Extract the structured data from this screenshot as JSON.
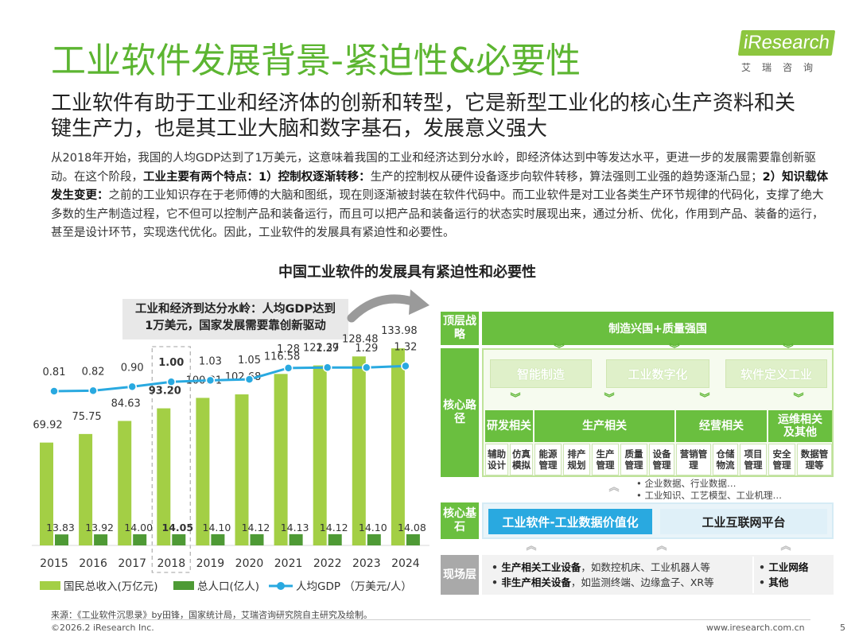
{
  "header": {
    "title": "工业软件发展背景-紧迫性&必要性",
    "logo_text": "iResearch",
    "logo_cn": "艾瑞咨询"
  },
  "subheadline": "工业软件有助于工业和经济体的创新和转型，它是新型工业化的核心生产资料和关键生产力，也是其工业大脑和数字基石，发展意义强大",
  "body": {
    "p1": "从2018年开始，我国的人均GDP达到了1万美元，这意味着我国的工业和经济达到分水岭，即经济体达到中等发达水平，更进一步的发展需要靠创新驱动。在这个阶段，",
    "b1": "工业主要有两个特点：1）控制权逐渐转移：",
    "p2": "生产的控制权从硬件设备逐步向软件转移，算法强则工业强的趋势逐渐凸显；",
    "b2": "2）知识载体发生变更：",
    "p3": "之前的工业知识存在于老师傅的大脑和图纸，现在则逐渐被封装在软件代码中。而工业软件是对工业各类生产环节规律的代码化，支撑了绝大多数的生产制造过程，它不但可以控制产品和装备运行，而且可以把产品和装备运行的状态实时展现出来，通过分析、优化，作用到产品、装备的运行，甚至是设计环节，实现迭代优化。因此，工业软件的发展具有紧迫性和必要性。"
  },
  "figure_title": "中国工业软件的发展具有紧迫性和必要性",
  "callout": {
    "line1": "工业和经济到达分水岭：人均GDP达到",
    "line2": "1万美元，国家发展需要靠创新驱动"
  },
  "chart_data": {
    "type": "bar",
    "categories": [
      "2015",
      "2016",
      "2017",
      "2018",
      "2019",
      "2020",
      "2021",
      "2022",
      "2023",
      "2024"
    ],
    "highlight_category": "2018",
    "series": [
      {
        "name": "国民总收入(万亿元)",
        "type": "bar",
        "color": "#a3cf45",
        "values": [
          69.92,
          75.75,
          84.63,
          93.2,
          100.31,
          102.68,
          116.58,
          122.37,
          128.48,
          133.98
        ],
        "labels": [
          "69.92",
          "75.75",
          "84.63",
          "93.20",
          "100.31",
          "102.68",
          "116.58",
          "122.37",
          "128.48",
          "133.98"
        ]
      },
      {
        "name": "总人口(亿人)",
        "type": "bar",
        "color": "#4e9a35",
        "values": [
          13.83,
          13.92,
          14.0,
          14.05,
          14.1,
          14.12,
          14.13,
          14.12,
          14.1,
          14.08
        ],
        "labels": [
          "13.83",
          "13.92",
          "14.00",
          "14.05",
          "14.10",
          "14.12",
          "14.13",
          "14.12",
          "14.10",
          "14.08"
        ]
      },
      {
        "name": "人均GDP （万美元/人）",
        "type": "line",
        "color": "#29a9e0",
        "values": [
          0.81,
          0.82,
          0.9,
          1.0,
          1.03,
          1.05,
          1.28,
          1.29,
          1.29,
          1.32
        ],
        "labels": [
          "0.81",
          "0.82",
          "0.90",
          "1.00",
          "1.03",
          "1.05",
          "1.28",
          "1.29",
          "1.29",
          "1.32"
        ]
      }
    ],
    "legend_position": "bottom",
    "title": "",
    "xlabel": "",
    "ylabel": ""
  },
  "diagram": {
    "top": {
      "label": "顶层战略",
      "bar": "制造兴国+质量强国"
    },
    "core_path": {
      "label": "核心路径",
      "boxes": [
        "智能制造",
        "工业数字化",
        "软件定义工业"
      ],
      "categories": [
        {
          "name": "研发相关",
          "leaves": [
            "辅助设计",
            "仿真模拟"
          ]
        },
        {
          "name": "生产相关",
          "leaves": [
            "能源管理",
            "排产规划",
            "生产管理",
            "质量管理",
            "设备管理"
          ]
        },
        {
          "name": "经营相关",
          "leaves": [
            "营销管理",
            "仓储物流",
            "项目管理"
          ]
        },
        {
          "name": "运维相关及其他",
          "leaves": [
            "安全管理",
            "数据管理等"
          ]
        }
      ],
      "bullets": [
        "企业数据、行业数据…",
        "工业知识、工艺模型、工业机理…"
      ]
    },
    "core_base": {
      "label": "核心基石",
      "left": "工业软件-工业数据价值化",
      "right": "工业互联网平台"
    },
    "field": {
      "label": "现场层",
      "items": [
        {
          "bold": "生产相关工业设备",
          "rest": "，如数控机床、工业机器人等"
        },
        {
          "bold": "非生产相关设备",
          "rest": "，如监测终端、边缘盒子、XR等"
        }
      ],
      "right_items": [
        "工业网络",
        "其他"
      ]
    }
  },
  "footer": {
    "source": "来源：《工业软件沉思录》by田锋，国家统计局，艾瑞咨询研究院自主研究及绘制。",
    "copyright": "©2026.2 iResearch Inc.",
    "website": "www.iresearch.com.cn",
    "page": "5"
  }
}
